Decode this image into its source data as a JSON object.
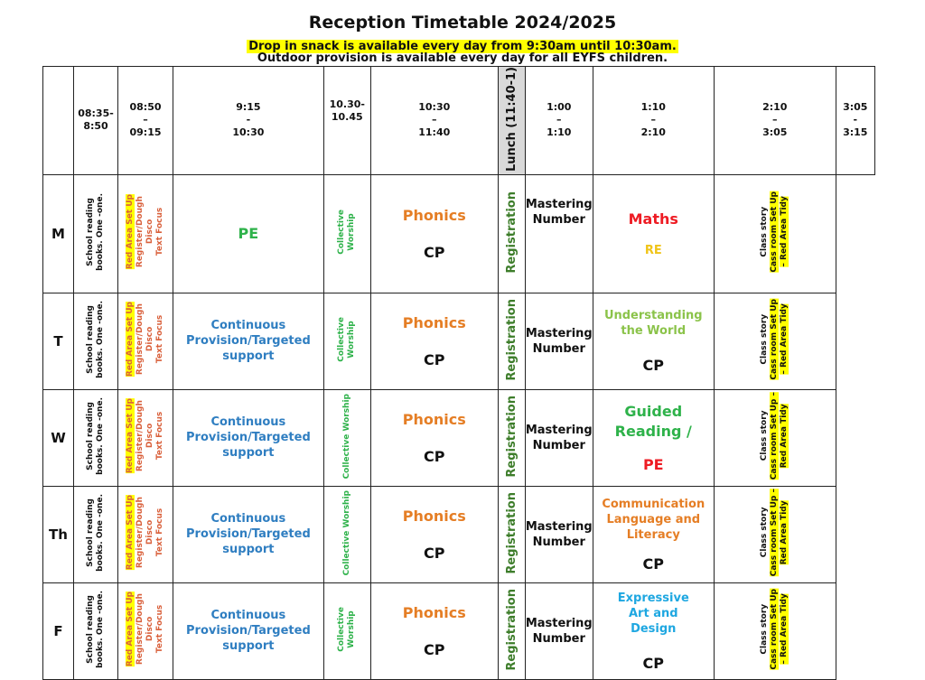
{
  "title": "Reception Timetable 2024/2025",
  "snack_notice": "Drop in snack is available every day from 9:30am until 10:30am.",
  "outdoor_notice": "Outdoor provision is available every day for all EYFS children.",
  "headers": {
    "c1": [
      "08:35-",
      "8:50"
    ],
    "c2": [
      "08:50",
      "–",
      "09:15"
    ],
    "c3": [
      "9:15",
      "-",
      "10:30"
    ],
    "c4": [
      "10.30-",
      "10.45"
    ],
    "c5": [
      "10:30",
      "–",
      "11:40"
    ],
    "c7": [
      "1:00",
      "–",
      "1:10"
    ],
    "c8": [
      "1:10",
      "–",
      "2:10"
    ],
    "c9": [
      "2:10",
      "–",
      "3:05"
    ],
    "c10": [
      "3:05",
      "-",
      "3:15"
    ]
  },
  "lunch": "Lunch (11:40-1)",
  "rows": [
    {
      "day": "M",
      "reading": [
        "School reading",
        "books. One -one."
      ],
      "morning": [
        "Red Area Set Up",
        "Register/Dough",
        "Disco",
        "Text Focus"
      ],
      "session": "PE",
      "worship": [
        "Collective",
        "Worship"
      ],
      "phonics": "Phonics",
      "cp": "CP",
      "registration": "Registration",
      "mastering": [
        "Mastering",
        "Number"
      ],
      "afternoon": [
        "Maths",
        "RE"
      ],
      "end": [
        "Class story",
        "Cass room Set Up",
        "– Red Area Tidy"
      ]
    },
    {
      "day": "T",
      "reading": [
        "School reading",
        "books. One -one."
      ],
      "morning": [
        "Red Area Set Up",
        "Register/Dough",
        "Disco",
        "Text Focus"
      ],
      "session": "Continuous Provision/Targeted support",
      "worship": [
        "Collective",
        "Worship"
      ],
      "phonics": "Phonics",
      "cp": "CP",
      "registration": "Registration",
      "mastering": [
        "Mastering",
        "Number"
      ],
      "afternoon": [
        "Understanding the World",
        "CP"
      ],
      "end": [
        "Class story",
        "Cass room Set Up",
        "– Red Area Tidy"
      ]
    },
    {
      "day": "W",
      "reading": [
        "School reading",
        "books. One -one."
      ],
      "morning": [
        "Red Area Set Up",
        "Register/Dough",
        "Disco",
        "Text Focus"
      ],
      "session": "Continuous Provision/Targeted support",
      "worship": [
        "Collective Worship"
      ],
      "phonics": "Phonics",
      "cp": "CP",
      "registration": "Registration",
      "mastering": [
        "Mastering",
        "Number"
      ],
      "afternoon": [
        "Guided Reading /",
        "PE"
      ],
      "end": [
        "Class story",
        "Cass room Set Up –",
        "Red Area Tidy"
      ]
    },
    {
      "day": "Th",
      "reading": [
        "School reading",
        "books. One -one."
      ],
      "morning": [
        "Red Area Set Up",
        "Register/Dough",
        "Disco",
        "Text Focus"
      ],
      "session": "Continuous Provision/Targeted support",
      "worship": [
        "Collective Worship"
      ],
      "phonics": "Phonics",
      "cp": "CP",
      "registration": "Registration",
      "mastering": [
        "Mastering",
        "Number"
      ],
      "afternoon": [
        "Communication Language and Literacy",
        "CP"
      ],
      "end": [
        "Class story",
        "Cass room Set Up –",
        "Red Area Tidy"
      ]
    },
    {
      "day": "F",
      "reading": [
        "School reading",
        "books. One -one."
      ],
      "morning": [
        "Red Area Set Up",
        "Register/Dough",
        "Disco",
        "Text Focus"
      ],
      "session": "Continuous Provision/Targeted support",
      "worship": [
        "Collective",
        "Worship"
      ],
      "phonics": "Phonics",
      "cp": "CP",
      "registration": "Registration",
      "mastering": [
        "Mastering",
        "Number"
      ],
      "afternoon": [
        "Expressive Art and Design",
        "CP"
      ],
      "end": [
        "Class story",
        "Cass room Set Up",
        "– Red Area Tidy"
      ]
    }
  ],
  "colors": {
    "highlight": "#ffff00",
    "phonics": "#e57e25",
    "pe": "#2eb24a",
    "continuous": "#2f7ec1",
    "registration": "#3d7d2a",
    "maths": "#ee1c24",
    "re": "#f0c419",
    "understanding": "#8bc34a",
    "expressive": "#1ea7e1",
    "lunch": "#d9d9d9"
  }
}
